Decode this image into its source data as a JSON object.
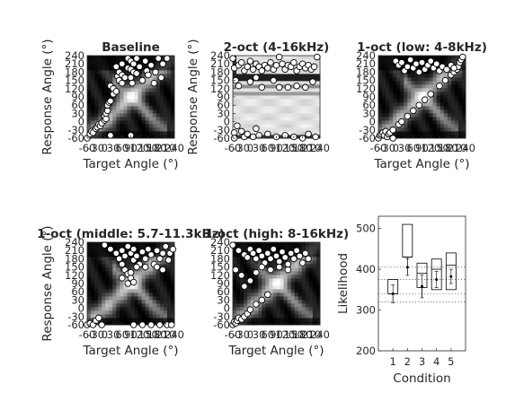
{
  "chart_data": [
    {
      "type": "heatmap",
      "title": "Baseline",
      "xlabel": "Target Angle (°)",
      "ylabel": "Response Angle (°)",
      "x_ticks": [
        -60,
        -30,
        0,
        30,
        60,
        90,
        120,
        150,
        180,
        210,
        240
      ],
      "y_ticks": [
        -60,
        -30,
        0,
        30,
        60,
        90,
        120,
        150,
        180,
        210,
        240
      ],
      "xlim": [
        -60,
        240
      ],
      "ylim": [
        -60,
        240
      ],
      "pattern": "diagonal",
      "points": [
        [
          -60,
          -60
        ],
        [
          -50,
          -45
        ],
        [
          -45,
          -35
        ],
        [
          -40,
          -40
        ],
        [
          -30,
          -25
        ],
        [
          -25,
          -20
        ],
        [
          -20,
          -10
        ],
        [
          -15,
          -15
        ],
        [
          -10,
          -5
        ],
        [
          0,
          5
        ],
        [
          0,
          20
        ],
        [
          5,
          10
        ],
        [
          5,
          30
        ],
        [
          10,
          40
        ],
        [
          10,
          60
        ],
        [
          15,
          70
        ],
        [
          20,
          75
        ],
        [
          20,
          130
        ],
        [
          20,
          -50
        ],
        [
          30,
          120
        ],
        [
          30,
          100
        ],
        [
          40,
          110
        ],
        [
          40,
          200
        ],
        [
          45,
          165
        ],
        [
          50,
          150
        ],
        [
          50,
          180
        ],
        [
          60,
          210
        ],
        [
          60,
          170
        ],
        [
          60,
          140
        ],
        [
          70,
          160
        ],
        [
          80,
          230
        ],
        [
          80,
          195
        ],
        [
          90,
          220
        ],
        [
          90,
          190
        ],
        [
          90,
          160
        ],
        [
          95,
          140
        ],
        [
          100,
          210
        ],
        [
          100,
          180
        ],
        [
          110,
          230
        ],
        [
          110,
          175
        ],
        [
          120,
          200
        ],
        [
          130,
          150
        ],
        [
          140,
          220
        ],
        [
          145,
          185
        ],
        [
          150,
          170
        ],
        [
          160,
          205
        ],
        [
          170,
          140
        ],
        [
          175,
          180
        ],
        [
          185,
          230
        ],
        [
          195,
          160
        ],
        [
          200,
          210
        ],
        [
          215,
          230
        ],
        [
          90,
          -50
        ]
      ]
    },
    {
      "type": "heatmap",
      "title": "2-oct (4-16kHz)",
      "xlabel": "",
      "ylabel": "Response Angle (°)",
      "x_ticks": [
        -60,
        -30,
        0,
        30,
        60,
        90,
        120,
        150,
        180,
        210,
        240
      ],
      "y_ticks": [
        -60,
        -30,
        0,
        30,
        60,
        90,
        120,
        150,
        180,
        210,
        240
      ],
      "xlim": [
        -60,
        240
      ],
      "ylim": [
        -60,
        240
      ],
      "pattern": "bright",
      "points": [
        [
          -55,
          195
        ],
        [
          -40,
          205
        ],
        [
          -30,
          215
        ],
        [
          -20,
          185
        ],
        [
          -10,
          200
        ],
        [
          0,
          220
        ],
        [
          10,
          190
        ],
        [
          20,
          210
        ],
        [
          30,
          200
        ],
        [
          40,
          185
        ],
        [
          50,
          205
        ],
        [
          60,
          195
        ],
        [
          70,
          215
        ],
        [
          80,
          190
        ],
        [
          90,
          205
        ],
        [
          100,
          235
        ],
        [
          110,
          210
        ],
        [
          120,
          190
        ],
        [
          130,
          205
        ],
        [
          140,
          200
        ],
        [
          150,
          215
        ],
        [
          160,
          185
        ],
        [
          170,
          200
        ],
        [
          180,
          210
        ],
        [
          190,
          195
        ],
        [
          200,
          205
        ],
        [
          210,
          190
        ],
        [
          220,
          200
        ],
        [
          230,
          235
        ],
        [
          -50,
          150
        ],
        [
          -40,
          130
        ],
        [
          0,
          145
        ],
        [
          20,
          160
        ],
        [
          40,
          125
        ],
        [
          80,
          150
        ],
        [
          100,
          125
        ],
        [
          130,
          125
        ],
        [
          160,
          130
        ],
        [
          190,
          125
        ],
        [
          215,
          145
        ],
        [
          -55,
          -40
        ],
        [
          -45,
          -15
        ],
        [
          -30,
          -35
        ],
        [
          -20,
          -55
        ],
        [
          -10,
          -45
        ],
        [
          10,
          -55
        ],
        [
          30,
          -50
        ],
        [
          60,
          -45
        ],
        [
          90,
          -55
        ],
        [
          120,
          -50
        ],
        [
          150,
          -55
        ],
        [
          180,
          -60
        ],
        [
          200,
          -45
        ],
        [
          225,
          -55
        ],
        [
          -55,
          -60
        ],
        [
          20,
          -25
        ],
        [
          -60,
          230
        ]
      ]
    },
    {
      "type": "heatmap",
      "title": "1-oct (low: 4-8kHz)",
      "xlabel": "Target Angle (°)",
      "ylabel": "",
      "x_ticks": [
        -60,
        -30,
        0,
        30,
        60,
        90,
        120,
        150,
        180,
        210,
        240
      ],
      "y_ticks": [
        -60,
        -30,
        0,
        30,
        60,
        90,
        120,
        150,
        180,
        210,
        240
      ],
      "xlim": [
        -60,
        240
      ],
      "ylim": [
        -60,
        240
      ],
      "pattern": "diagonal",
      "points": [
        [
          -60,
          -60
        ],
        [
          -55,
          -50
        ],
        [
          -50,
          -45
        ],
        [
          -45,
          -40
        ],
        [
          -40,
          -50
        ],
        [
          -35,
          -35
        ],
        [
          -30,
          -55
        ],
        [
          -25,
          -45
        ],
        [
          -20,
          -40
        ],
        [
          -10,
          -60
        ],
        [
          -10,
          -30
        ],
        [
          10,
          -10
        ],
        [
          20,
          0
        ],
        [
          40,
          20
        ],
        [
          60,
          40
        ],
        [
          80,
          60
        ],
        [
          100,
          80
        ],
        [
          120,
          100
        ],
        [
          150,
          130
        ],
        [
          170,
          150
        ],
        [
          190,
          170
        ],
        [
          200,
          180
        ],
        [
          210,
          190
        ],
        [
          215,
          200
        ],
        [
          220,
          215
        ],
        [
          225,
          225
        ],
        [
          230,
          235
        ],
        [
          0,
          220
        ],
        [
          10,
          205
        ],
        [
          20,
          215
        ],
        [
          30,
          185
        ],
        [
          40,
          200
        ],
        [
          50,
          225
        ],
        [
          60,
          195
        ],
        [
          70,
          210
        ],
        [
          80,
          180
        ],
        [
          90,
          215
        ],
        [
          100,
          190
        ],
        [
          110,
          205
        ],
        [
          120,
          220
        ],
        [
          130,
          195
        ],
        [
          140,
          210
        ],
        [
          150,
          185
        ],
        [
          160,
          200
        ],
        [
          175,
          190
        ],
        [
          190,
          205
        ],
        [
          200,
          195
        ]
      ]
    },
    {
      "type": "heatmap",
      "title": "1-oct (middle: 5.7-11.3kHz)",
      "xlabel": "Target Angle (°)",
      "ylabel": "Response Angle (°)",
      "x_ticks": [
        -60,
        -30,
        0,
        30,
        60,
        90,
        120,
        150,
        180,
        210,
        240
      ],
      "y_ticks": [
        -60,
        -30,
        0,
        30,
        60,
        90,
        120,
        150,
        180,
        210,
        240
      ],
      "xlim": [
        -60,
        240
      ],
      "ylim": [
        -60,
        240
      ],
      "pattern": "diagonal",
      "points": [
        [
          -60,
          -60
        ],
        [
          -50,
          -55
        ],
        [
          -40,
          -60
        ],
        [
          -30,
          -45
        ],
        [
          -20,
          -35
        ],
        [
          -10,
          -60
        ],
        [
          100,
          -60
        ],
        [
          130,
          -60
        ],
        [
          160,
          -60
        ],
        [
          190,
          -60
        ],
        [
          215,
          -60
        ],
        [
          230,
          -60
        ],
        [
          0,
          230
        ],
        [
          20,
          215
        ],
        [
          40,
          200
        ],
        [
          50,
          180
        ],
        [
          60,
          160
        ],
        [
          70,
          140
        ],
        [
          80,
          125
        ],
        [
          90,
          110
        ],
        [
          100,
          95
        ],
        [
          60,
          210
        ],
        [
          70,
          190
        ],
        [
          80,
          225
        ],
        [
          90,
          200
        ],
        [
          100,
          215
        ],
        [
          100,
          175
        ],
        [
          110,
          190
        ],
        [
          120,
          160
        ],
        [
          130,
          205
        ],
        [
          140,
          180
        ],
        [
          150,
          215
        ],
        [
          160,
          195
        ],
        [
          170,
          160
        ],
        [
          180,
          210
        ],
        [
          190,
          180
        ],
        [
          200,
          200
        ],
        [
          210,
          225
        ],
        [
          225,
          200
        ],
        [
          235,
          215
        ],
        [
          60,
          110
        ],
        [
          80,
          90
        ],
        [
          110,
          150
        ],
        [
          140,
          150
        ],
        [
          180,
          150
        ],
        [
          200,
          140
        ],
        [
          220,
          175
        ],
        [
          90,
          130
        ]
      ]
    },
    {
      "type": "heatmap",
      "title": "1-oct (high: 8-16kHz)",
      "xlabel": "Target Angle (°)",
      "ylabel": "",
      "x_ticks": [
        -60,
        -30,
        0,
        30,
        60,
        90,
        120,
        150,
        180,
        210,
        240
      ],
      "y_ticks": [
        -60,
        -30,
        0,
        30,
        60,
        90,
        120,
        150,
        180,
        210,
        240
      ],
      "xlim": [
        -60,
        240
      ],
      "ylim": [
        -60,
        240
      ],
      "pattern": "diagonal",
      "points": [
        [
          -60,
          -60
        ],
        [
          -55,
          -50
        ],
        [
          -50,
          -55
        ],
        [
          -45,
          -45
        ],
        [
          -40,
          -35
        ],
        [
          -30,
          -40
        ],
        [
          -20,
          -30
        ],
        [
          -10,
          -20
        ],
        [
          0,
          -5
        ],
        [
          20,
          15
        ],
        [
          40,
          30
        ],
        [
          60,
          50
        ],
        [
          -60,
          230
        ],
        [
          -40,
          210
        ],
        [
          -20,
          195
        ],
        [
          -10,
          185
        ],
        [
          0,
          215
        ],
        [
          10,
          200
        ],
        [
          20,
          180
        ],
        [
          30,
          210
        ],
        [
          40,
          190
        ],
        [
          50,
          165
        ],
        [
          60,
          200
        ],
        [
          70,
          180
        ],
        [
          80,
          215
        ],
        [
          90,
          190
        ],
        [
          100,
          170
        ],
        [
          110,
          205
        ],
        [
          120,
          185
        ],
        [
          130,
          160
        ],
        [
          140,
          200
        ],
        [
          150,
          180
        ],
        [
          160,
          210
        ],
        [
          170,
          190
        ],
        [
          180,
          165
        ],
        [
          190,
          200
        ],
        [
          200,
          180
        ],
        [
          -50,
          140
        ],
        [
          -30,
          120
        ],
        [
          0,
          100
        ],
        [
          -20,
          80
        ],
        [
          20,
          130
        ],
        [
          40,
          150
        ],
        [
          70,
          140
        ],
        [
          100,
          150
        ],
        [
          130,
          140
        ]
      ]
    },
    {
      "type": "bar",
      "title": "",
      "xlabel": "Condition",
      "ylabel": "Likelihood",
      "categories": [
        "1",
        "2",
        "3",
        "4",
        "5"
      ],
      "y_ticks": [
        200,
        300,
        400,
        500
      ],
      "ylim": [
        200,
        530
      ],
      "box_lower": [
        340,
        430,
        355,
        350,
        350
      ],
      "box_upper": [
        375,
        510,
        415,
        425,
        440
      ],
      "median": [
        340,
        430,
        390,
        400,
        410
      ],
      "mean": [
        340,
        405,
        358,
        375,
        382
      ],
      "err_lower": [
        318,
        385,
        330,
        355,
        365
      ],
      "err_upper": [
        362,
        425,
        386,
        395,
        400
      ],
      "ref_lines": [
        405,
        375,
        340,
        320
      ],
      "ref_line_style": "dotted"
    }
  ]
}
